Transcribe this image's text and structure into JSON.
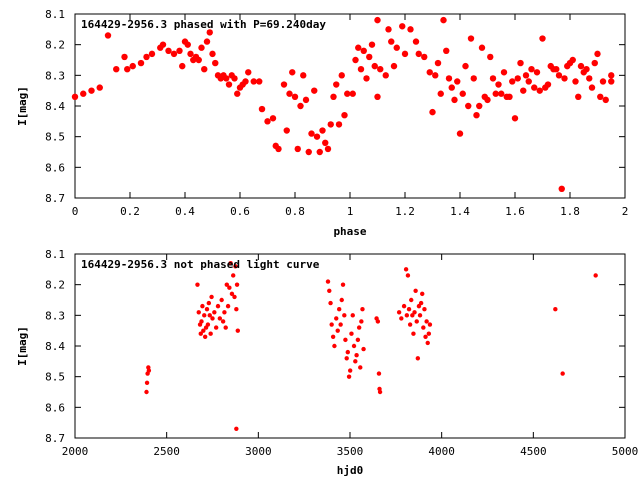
{
  "chart_data": [
    {
      "type": "scatter",
      "title": "164429-2956.3 phased with P=69.240day",
      "xlabel": "phase",
      "ylabel": "I[mag]",
      "xlim": [
        0,
        2
      ],
      "ylim": [
        8.7,
        8.1
      ],
      "y_inverted": true,
      "x_ticks": [
        "0",
        "0.2",
        "0.4",
        "0.6",
        "0.8",
        "1",
        "1.2",
        "1.4",
        "1.6",
        "1.8",
        "2"
      ],
      "x_tick_values": [
        0,
        0.2,
        0.4,
        0.6,
        0.8,
        1.0,
        1.2,
        1.4,
        1.6,
        1.8,
        2.0
      ],
      "y_ticks": [
        "8.1",
        "8.2",
        "8.3",
        "8.4",
        "8.5",
        "8.6",
        "8.7"
      ],
      "y_tick_values": [
        8.1,
        8.2,
        8.3,
        8.4,
        8.5,
        8.6,
        8.7
      ],
      "marker_color": "#ff0000",
      "grid": false,
      "points": [
        [
          0.0,
          8.37
        ],
        [
          0.03,
          8.36
        ],
        [
          0.06,
          8.35
        ],
        [
          0.09,
          8.34
        ],
        [
          0.12,
          8.17
        ],
        [
          0.15,
          8.28
        ],
        [
          0.18,
          8.24
        ],
        [
          0.19,
          8.28
        ],
        [
          0.21,
          8.27
        ],
        [
          0.24,
          8.26
        ],
        [
          0.26,
          8.24
        ],
        [
          0.28,
          8.23
        ],
        [
          0.31,
          8.21
        ],
        [
          0.32,
          8.2
        ],
        [
          0.34,
          8.22
        ],
        [
          0.36,
          8.23
        ],
        [
          0.38,
          8.22
        ],
        [
          0.39,
          8.27
        ],
        [
          0.4,
          8.19
        ],
        [
          0.41,
          8.2
        ],
        [
          0.42,
          8.23
        ],
        [
          0.43,
          8.25
        ],
        [
          0.44,
          8.24
        ],
        [
          0.45,
          8.25
        ],
        [
          0.46,
          8.21
        ],
        [
          0.47,
          8.28
        ],
        [
          0.48,
          8.19
        ],
        [
          0.49,
          8.16
        ],
        [
          0.5,
          8.23
        ],
        [
          0.51,
          8.26
        ],
        [
          0.52,
          8.3
        ],
        [
          0.53,
          8.31
        ],
        [
          0.54,
          8.3
        ],
        [
          0.55,
          8.31
        ],
        [
          0.56,
          8.33
        ],
        [
          0.57,
          8.3
        ],
        [
          0.58,
          8.31
        ],
        [
          0.59,
          8.36
        ],
        [
          0.6,
          8.34
        ],
        [
          0.61,
          8.33
        ],
        [
          0.62,
          8.32
        ],
        [
          0.63,
          8.29
        ],
        [
          0.65,
          8.32
        ],
        [
          0.67,
          8.32
        ],
        [
          0.68,
          8.41
        ],
        [
          0.7,
          8.45
        ],
        [
          0.72,
          8.44
        ],
        [
          0.73,
          8.53
        ],
        [
          0.74,
          8.54
        ],
        [
          0.76,
          8.33
        ],
        [
          0.77,
          8.48
        ],
        [
          0.78,
          8.36
        ],
        [
          0.79,
          8.29
        ],
        [
          0.8,
          8.37
        ],
        [
          0.81,
          8.54
        ],
        [
          0.82,
          8.4
        ],
        [
          0.83,
          8.3
        ],
        [
          0.84,
          8.38
        ],
        [
          0.85,
          8.55
        ],
        [
          0.86,
          8.49
        ],
        [
          0.87,
          8.35
        ],
        [
          0.88,
          8.5
        ],
        [
          0.89,
          8.55
        ],
        [
          0.9,
          8.48
        ],
        [
          0.91,
          8.52
        ],
        [
          0.92,
          8.54
        ],
        [
          0.93,
          8.46
        ],
        [
          0.94,
          8.37
        ],
        [
          0.95,
          8.33
        ],
        [
          0.96,
          8.46
        ],
        [
          0.97,
          8.3
        ],
        [
          0.98,
          8.43
        ],
        [
          0.99,
          8.36
        ],
        [
          1.01,
          8.36
        ],
        [
          1.02,
          8.25
        ],
        [
          1.03,
          8.21
        ],
        [
          1.04,
          8.28
        ],
        [
          1.05,
          8.22
        ],
        [
          1.06,
          8.31
        ],
        [
          1.07,
          8.24
        ],
        [
          1.08,
          8.2
        ],
        [
          1.09,
          8.27
        ],
        [
          1.1,
          8.12
        ],
        [
          1.1,
          8.37
        ],
        [
          1.11,
          8.28
        ],
        [
          1.13,
          8.3
        ],
        [
          1.14,
          8.15
        ],
        [
          1.15,
          8.19
        ],
        [
          1.16,
          8.27
        ],
        [
          1.17,
          8.21
        ],
        [
          1.19,
          8.14
        ],
        [
          1.2,
          8.23
        ],
        [
          1.22,
          8.15
        ],
        [
          1.24,
          8.19
        ],
        [
          1.25,
          8.23
        ],
        [
          1.27,
          8.24
        ],
        [
          1.29,
          8.29
        ],
        [
          1.3,
          8.42
        ],
        [
          1.31,
          8.3
        ],
        [
          1.32,
          8.26
        ],
        [
          1.33,
          8.36
        ],
        [
          1.34,
          8.12
        ],
        [
          1.35,
          8.22
        ],
        [
          1.36,
          8.31
        ],
        [
          1.37,
          8.34
        ],
        [
          1.38,
          8.38
        ],
        [
          1.39,
          8.32
        ],
        [
          1.4,
          8.49
        ],
        [
          1.41,
          8.36
        ],
        [
          1.42,
          8.27
        ],
        [
          1.43,
          8.4
        ],
        [
          1.44,
          8.18
        ],
        [
          1.45,
          8.31
        ],
        [
          1.46,
          8.43
        ],
        [
          1.47,
          8.4
        ],
        [
          1.48,
          8.21
        ],
        [
          1.49,
          8.37
        ],
        [
          1.5,
          8.38
        ],
        [
          1.51,
          8.24
        ],
        [
          1.52,
          8.31
        ],
        [
          1.53,
          8.36
        ],
        [
          1.54,
          8.33
        ],
        [
          1.55,
          8.36
        ],
        [
          1.56,
          8.29
        ],
        [
          1.57,
          8.37
        ],
        [
          1.58,
          8.37
        ],
        [
          1.59,
          8.32
        ],
        [
          1.6,
          8.44
        ],
        [
          1.61,
          8.31
        ],
        [
          1.62,
          8.26
        ],
        [
          1.63,
          8.35
        ],
        [
          1.64,
          8.3
        ],
        [
          1.65,
          8.32
        ],
        [
          1.66,
          8.28
        ],
        [
          1.67,
          8.34
        ],
        [
          1.68,
          8.29
        ],
        [
          1.69,
          8.35
        ],
        [
          1.7,
          8.18
        ],
        [
          1.71,
          8.34
        ],
        [
          1.72,
          8.33
        ],
        [
          1.73,
          8.27
        ],
        [
          1.74,
          8.28
        ],
        [
          1.75,
          8.28
        ],
        [
          1.76,
          8.3
        ],
        [
          1.77,
          8.67
        ],
        [
          1.78,
          8.31
        ],
        [
          1.79,
          8.27
        ],
        [
          1.8,
          8.26
        ],
        [
          1.81,
          8.25
        ],
        [
          1.82,
          8.32
        ],
        [
          1.83,
          8.37
        ],
        [
          1.84,
          8.27
        ],
        [
          1.85,
          8.29
        ],
        [
          1.86,
          8.28
        ],
        [
          1.87,
          8.31
        ],
        [
          1.88,
          8.34
        ],
        [
          1.89,
          8.26
        ],
        [
          1.9,
          8.23
        ],
        [
          1.91,
          8.37
        ],
        [
          1.92,
          8.32
        ],
        [
          1.93,
          8.38
        ],
        [
          1.95,
          8.3
        ],
        [
          1.95,
          8.32
        ]
      ]
    },
    {
      "type": "scatter",
      "title": "164429-2956.3 not phased light curve",
      "xlabel": "hjd0",
      "ylabel": "I[mag]",
      "xlim": [
        2000,
        5000
      ],
      "ylim": [
        8.7,
        8.1
      ],
      "y_inverted": true,
      "x_ticks": [
        "2000",
        "2500",
        "3000",
        "3500",
        "4000",
        "4500",
        "5000"
      ],
      "x_tick_values": [
        2000,
        2500,
        3000,
        3500,
        4000,
        4500,
        5000
      ],
      "y_ticks": [
        "8.1",
        "8.2",
        "8.3",
        "8.4",
        "8.5",
        "8.6",
        "8.7"
      ],
      "y_tick_values": [
        8.1,
        8.2,
        8.3,
        8.4,
        8.5,
        8.6,
        8.7
      ],
      "marker_color": "#ff0000",
      "grid": false,
      "points": [
        [
          2390,
          8.55
        ],
        [
          2393,
          8.52
        ],
        [
          2396,
          8.49
        ],
        [
          2400,
          8.47
        ],
        [
          2403,
          8.48
        ],
        [
          2668,
          8.2
        ],
        [
          2675,
          8.29
        ],
        [
          2682,
          8.33
        ],
        [
          2686,
          8.36
        ],
        [
          2690,
          8.32
        ],
        [
          2695,
          8.27
        ],
        [
          2700,
          8.35
        ],
        [
          2705,
          8.3
        ],
        [
          2710,
          8.37
        ],
        [
          2715,
          8.34
        ],
        [
          2720,
          8.28
        ],
        [
          2725,
          8.33
        ],
        [
          2730,
          8.26
        ],
        [
          2735,
          8.3
        ],
        [
          2740,
          8.36
        ],
        [
          2745,
          8.24
        ],
        [
          2750,
          8.31
        ],
        [
          2760,
          8.29
        ],
        [
          2770,
          8.34
        ],
        [
          2780,
          8.27
        ],
        [
          2790,
          8.31
        ],
        [
          2800,
          8.25
        ],
        [
          2808,
          8.32
        ],
        [
          2815,
          8.29
        ],
        [
          2822,
          8.34
        ],
        [
          2828,
          8.2
        ],
        [
          2835,
          8.27
        ],
        [
          2842,
          8.21
        ],
        [
          2849,
          8.13
        ],
        [
          2856,
          8.23
        ],
        [
          2863,
          8.17
        ],
        [
          2870,
          8.24
        ],
        [
          2875,
          8.14
        ],
        [
          2880,
          8.28
        ],
        [
          2884,
          8.2
        ],
        [
          2888,
          8.35
        ],
        [
          2880,
          8.67
        ],
        [
          3380,
          8.19
        ],
        [
          3387,
          8.22
        ],
        [
          3394,
          8.26
        ],
        [
          3400,
          8.33
        ],
        [
          3408,
          8.37
        ],
        [
          3415,
          8.4
        ],
        [
          3425,
          8.31
        ],
        [
          3433,
          8.35
        ],
        [
          3441,
          8.28
        ],
        [
          3449,
          8.33
        ],
        [
          3455,
          8.25
        ],
        [
          3462,
          8.2
        ],
        [
          3469,
          8.3
        ],
        [
          3475,
          8.38
        ],
        [
          3482,
          8.44
        ],
        [
          3488,
          8.42
        ],
        [
          3495,
          8.5
        ],
        [
          3501,
          8.48
        ],
        [
          3508,
          8.36
        ],
        [
          3515,
          8.3
        ],
        [
          3522,
          8.4
        ],
        [
          3529,
          8.45
        ],
        [
          3536,
          8.43
        ],
        [
          3543,
          8.38
        ],
        [
          3550,
          8.34
        ],
        [
          3556,
          8.47
        ],
        [
          3562,
          8.32
        ],
        [
          3568,
          8.28
        ],
        [
          3574,
          8.41
        ],
        [
          3645,
          8.31
        ],
        [
          3652,
          8.32
        ],
        [
          3658,
          8.49
        ],
        [
          3661,
          8.54
        ],
        [
          3664,
          8.55
        ],
        [
          3768,
          8.29
        ],
        [
          3780,
          8.31
        ],
        [
          3795,
          8.27
        ],
        [
          3806,
          8.15
        ],
        [
          3810,
          8.3
        ],
        [
          3816,
          8.17
        ],
        [
          3822,
          8.28
        ],
        [
          3828,
          8.33
        ],
        [
          3834,
          8.25
        ],
        [
          3840,
          8.3
        ],
        [
          3846,
          8.36
        ],
        [
          3852,
          8.29
        ],
        [
          3858,
          8.22
        ],
        [
          3864,
          8.32
        ],
        [
          3870,
          8.44
        ],
        [
          3876,
          8.27
        ],
        [
          3882,
          8.3
        ],
        [
          3888,
          8.26
        ],
        [
          3894,
          8.23
        ],
        [
          3900,
          8.34
        ],
        [
          3906,
          8.28
        ],
        [
          3912,
          8.37
        ],
        [
          3918,
          8.32
        ],
        [
          3924,
          8.39
        ],
        [
          3930,
          8.36
        ],
        [
          3936,
          8.33
        ],
        [
          4620,
          8.28
        ],
        [
          4660,
          8.49
        ],
        [
          4840,
          8.17
        ]
      ]
    }
  ]
}
